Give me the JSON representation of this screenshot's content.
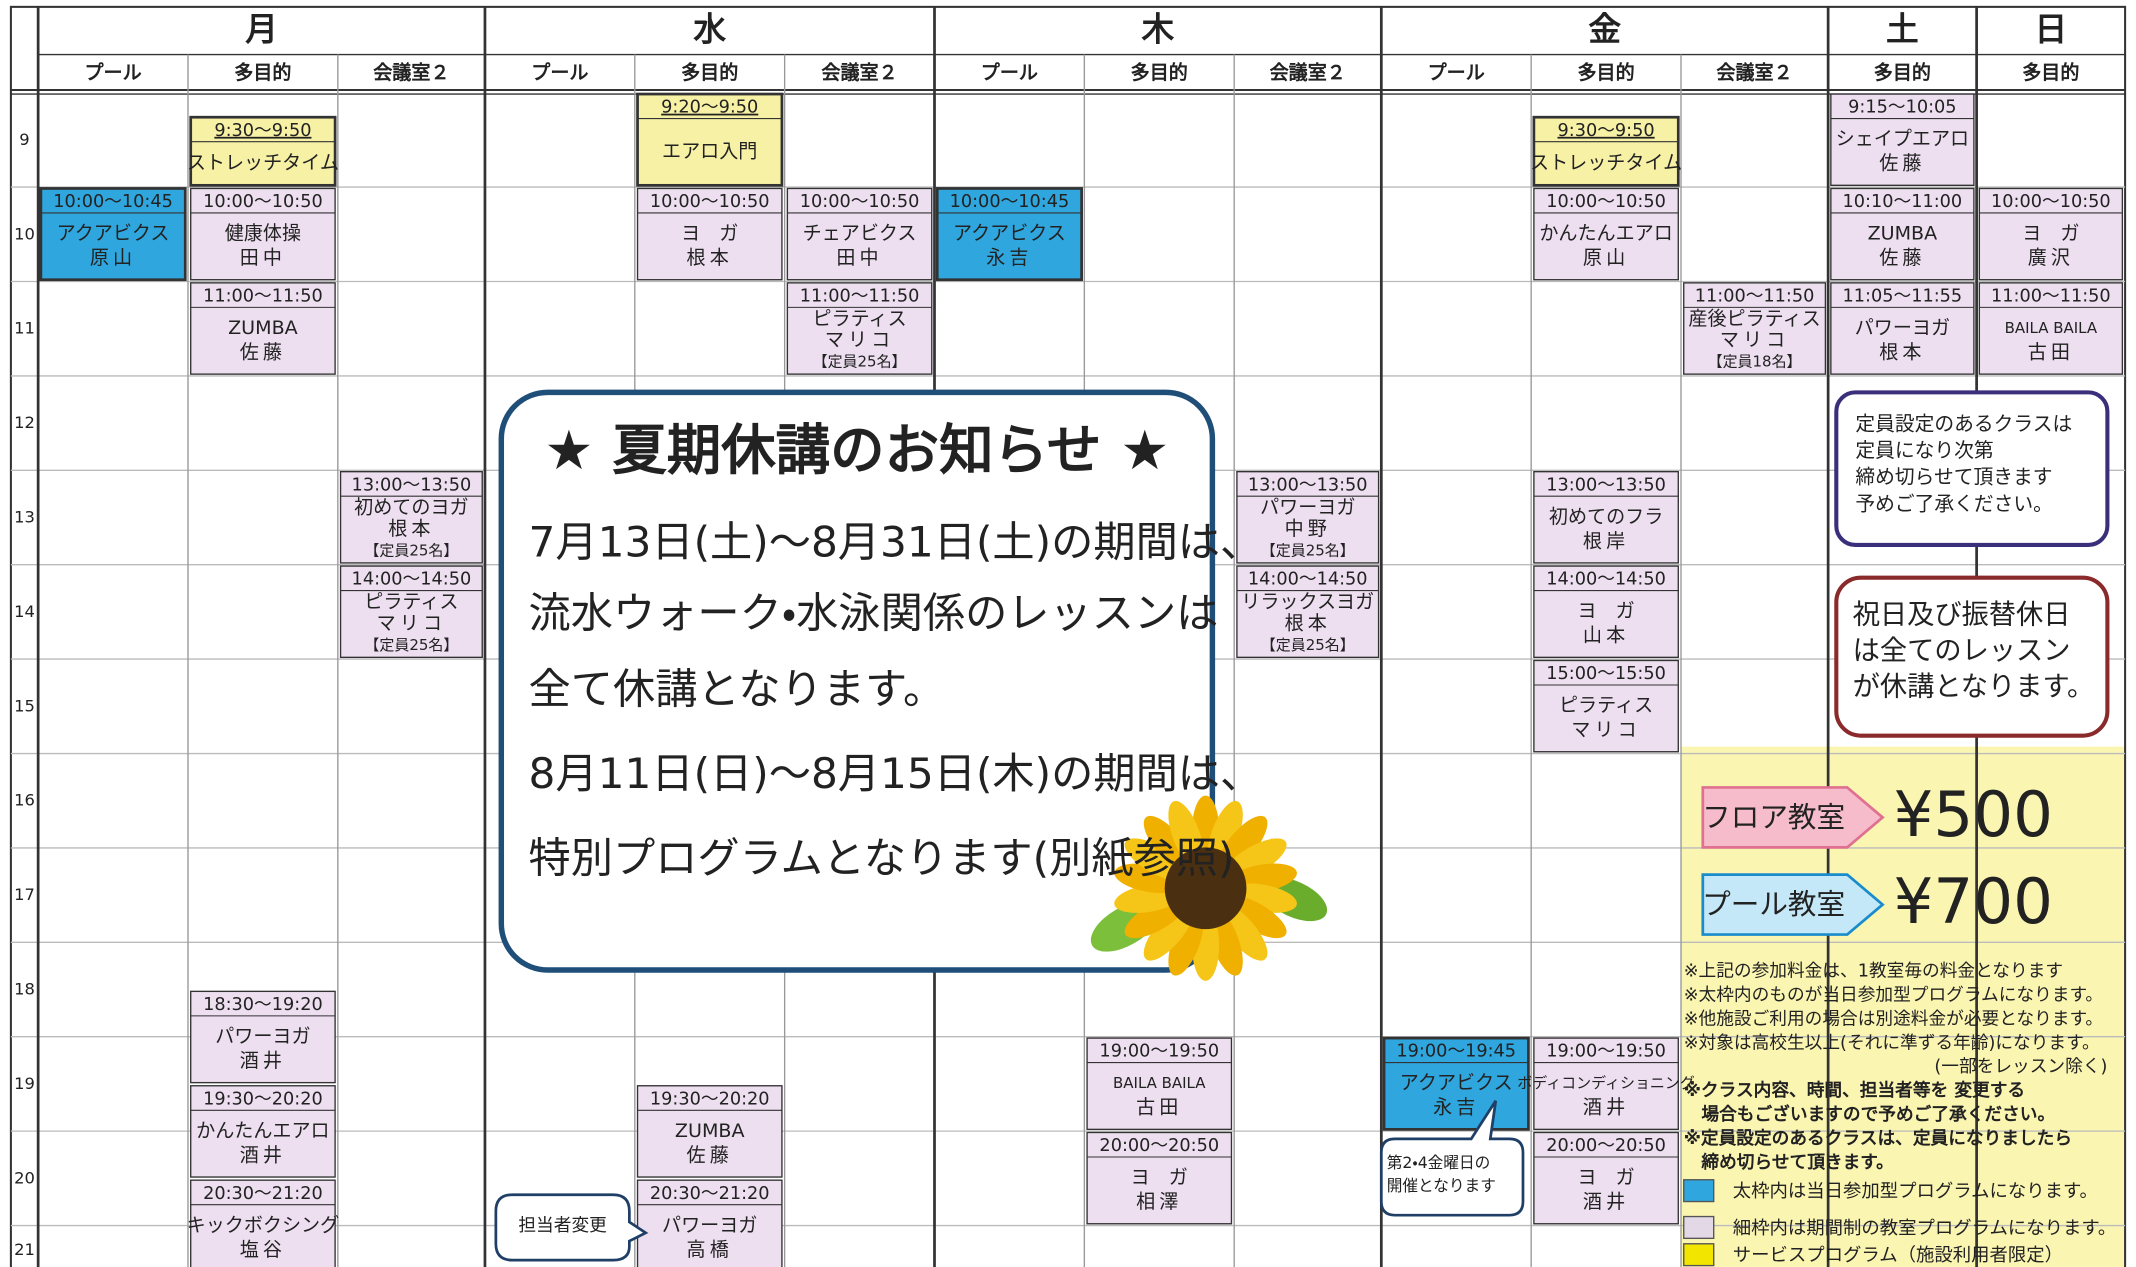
{
  "days": [
    {
      "name": "月",
      "color": "#222222",
      "rooms": [
        {
          "name": "プール",
          "classes": [
            {
              "time": "10:00～10:45",
              "name": "アクアビクス",
              "teacher": "原山",
              "color": "#2fa6dd"
            }
          ]
        },
        {
          "name": "多目的",
          "classes": [
            {
              "time": "9:30～9:50",
              "name": "ストレッチタイム",
              "color": "#f7f1a6"
            },
            {
              "time": "10:00～10:50",
              "name": "健康体操",
              "teacher": "田中",
              "color": "#eddff0"
            },
            {
              "time": "11:00～11:50",
              "name": "ZUMBA",
              "teacher": "佐藤",
              "color": "#eddff0"
            },
            {
              "time": "18:30～19:20",
              "name": "パワーヨガ",
              "teacher": "酒井",
              "color": "#eddff0"
            },
            {
              "time": "19:30～20:20",
              "name": "かんたんエアロ",
              "teacher": "酒井",
              "color": "#eddff0"
            },
            {
              "time": "20:30～21:20",
              "name": "キックボクシング",
              "teacher": "塩谷",
              "color": "#eddff0"
            }
          ]
        },
        {
          "name": "会議室２",
          "classes": [
            {
              "time": "13:00～13:50",
              "name": "初めてのヨガ",
              "teacher": "根本",
              "capacity": "【定員25名】",
              "color": "#eddff0"
            },
            {
              "time": "14:00～14:50",
              "name": "ピラティス",
              "teacher": "マリコ",
              "capacity": "【定員25名】",
              "color": "#eddff0"
            }
          ]
        }
      ]
    },
    {
      "name": "水",
      "color": "#222222",
      "rooms": [
        {
          "name": "プール",
          "classes": []
        },
        {
          "name": "多目的",
          "classes": [
            {
              "time": "9:20～9:50",
              "name": "エアロ入門",
              "color": "#f7f1a6"
            },
            {
              "time": "10:00～10:50",
              "name": "ヨ　ガ",
              "teacher": "根本",
              "color": "#eddff0"
            },
            {
              "time": "19:30～20:20",
              "name": "ZUMBA",
              "teacher": "佐藤",
              "color": "#eddff0"
            },
            {
              "time": "20:30～21:20",
              "name": "パワーヨガ",
              "teacher": "高橋",
              "color": "#eddff0"
            }
          ]
        },
        {
          "name": "会議室２",
          "classes": [
            {
              "time": "10:00～10:50",
              "name": "チェアビクス",
              "teacher": "田中",
              "color": "#eddff0"
            },
            {
              "time": "11:00～11:50",
              "name": "ピラティス",
              "teacher": "マリコ",
              "capacity": "【定員25名】",
              "color": "#eddff0"
            }
          ]
        }
      ]
    },
    {
      "name": "木",
      "color": "#222222",
      "rooms": [
        {
          "name": "プール",
          "classes": [
            {
              "time": "10:00～10:45",
              "name": "アクアビクス",
              "teacher": "永吉",
              "color": "#2fa6dd"
            }
          ]
        },
        {
          "name": "多目的",
          "classes": [
            {
              "time": "19:00～19:50",
              "name": "BAILA BAILA",
              "teacher": "古田",
              "color": "#eddff0"
            },
            {
              "time": "20:00～20:50",
              "name": "ヨ　ガ",
              "teacher": "相澤",
              "color": "#eddff0"
            }
          ]
        },
        {
          "name": "会議室２",
          "classes": [
            {
              "time": "13:00～13:50",
              "name": "パワーヨガ",
              "teacher": "中野",
              "capacity": "【定員25名】",
              "color": "#eddff0"
            },
            {
              "time": "14:00～14:50",
              "name": "リラックスヨガ",
              "teacher": "根本",
              "capacity": "【定員25名】",
              "color": "#eddff0"
            }
          ]
        }
      ]
    },
    {
      "name": "金",
      "color": "#222222",
      "rooms": [
        {
          "name": "プール",
          "classes": [
            {
              "time": "19:00～19:45",
              "name": "アクアビクス",
              "teacher": "永吉",
              "color": "#2fa6dd"
            }
          ]
        },
        {
          "name": "多目的",
          "classes": [
            {
              "time": "9:30～9:50",
              "name": "ストレッチタイム",
              "color": "#f7f1a6"
            },
            {
              "time": "10:00～10:50",
              "name": "かんたんエアロ",
              "teacher": "原山",
              "color": "#eddff0"
            },
            {
              "time": "13:00～13:50",
              "name": "初めてのフラ",
              "teacher": "根岸",
              "color": "#eddff0"
            },
            {
              "time": "14:00～14:50",
              "name": "ヨ　ガ",
              "teacher": "山本",
              "color": "#eddff0"
            },
            {
              "time": "15:00～15:50",
              "name": "ピラティス",
              "teacher": "マリコ",
              "color": "#eddff0"
            },
            {
              "time": "19:00～19:50",
              "name": "ボディコンディショニング",
              "teacher": "酒井",
              "color": "#eddff0"
            },
            {
              "time": "20:00～20:50",
              "name": "ヨ　ガ",
              "teacher": "酒井",
              "color": "#eddff0"
            }
          ]
        },
        {
          "name": "会議室２",
          "classes": [
            {
              "time": "11:00～11:50",
              "name": "産後ピラティス",
              "teacher": "マリコ",
              "capacity": "【定員18名】",
              "color": "#eddff0"
            }
          ]
        }
      ]
    },
    {
      "name": "土",
      "color": "#1a8fd6",
      "rooms": [
        {
          "name": "多目的",
          "classes": [
            {
              "time": "9:15～10:05",
              "name": "シェイプエアロ",
              "teacher": "佐藤",
              "color": "#eddff0"
            },
            {
              "time": "10:10～11:00",
              "name": "ZUMBA",
              "teacher": "佐藤",
              "color": "#eddff0"
            },
            {
              "time": "11:05～11:55",
              "name": "パワーヨガ",
              "teacher": "根本",
              "color": "#eddff0"
            }
          ]
        }
      ]
    },
    {
      "name": "日",
      "color": "#e0262e",
      "rooms": [
        {
          "name": "多目的",
          "classes": [
            {
              "time": "10:00～10:50",
              "name": "ヨ　ガ",
              "teacher": "廣沢",
              "color": "#eddff0"
            },
            {
              "time": "11:00～11:50",
              "name": "BAILA BAILA",
              "teacher": "古田",
              "color": "#eddff0"
            }
          ]
        }
      ]
    }
  ],
  "hours": [
    9,
    10,
    11,
    12,
    13,
    14,
    15,
    16,
    17,
    18,
    19,
    20,
    21
  ],
  "notice": {
    "title": "★ 夏期休講のお知らせ ★",
    "lines": [
      "7月13日(土)～8月31日(土)の期間は、",
      "流水ウォーク・水泳関係のレッスンは",
      "全て休講となります。",
      "8月11日(日)～8月15日(木)の期間は、",
      "特別プログラムとなります(別紙参照)"
    ]
  },
  "notes": [
    {
      "lines": [
        "定員設定のあるクラスは",
        "定員になり次第",
        "締め切らせて頂きます",
        "予めご了承ください。"
      ]
    },
    {
      "lines": [
        "祝日及び振替休日",
        "は全てのレッスン",
        "が休講となります。"
      ]
    }
  ],
  "prices": [
    {
      "label": "フロア教室",
      "price": "¥500"
    },
    {
      "label": "プール教室",
      "price": "¥700"
    }
  ],
  "remarks": [
    {
      "text": "※上記の参加料金は、1教室毎の料金となります",
      "color": "#222222"
    },
    {
      "text": "※太枠内のものが当日参加型プログラムになります。",
      "color": "#222222"
    },
    {
      "text": "※他施設ご利用の場合は別途料金が必要となります。",
      "color": "#222222"
    },
    {
      "text": "※対象は高校生以上(それに準ずる年齢)になります。",
      "color": "#222222"
    },
    {
      "text": "(一部をレッスン除く)",
      "color": "#222222"
    },
    {
      "text": "※クラス内容、時間、担当者等を 変更する",
      "color": "#e0262e"
    },
    {
      "text": "　場合もございますので予めご了承ください。",
      "color": "#e0262e"
    },
    {
      "text": "※定員設定のあるクラスは、定員になりましたら",
      "color": "#e0262e"
    },
    {
      "text": "　締め切らせて頂きます。",
      "color": "#e0262e"
    }
  ],
  "legend": [
    {
      "text": "太枠内は当日参加型プログラムになります。",
      "color": "#2fa6dd"
    },
    {
      "text": "細枠内は期間制の教室プログラムになります。",
      "color": "#e3d8e6"
    },
    {
      "text": "サービスプログラム（施設利用者限定）",
      "color": "#f2e600"
    }
  ],
  "callouts": [
    {
      "lines": [
        "担当者変更"
      ]
    },
    {
      "lines": [
        "第2・4金曜日の",
        "開催となります"
      ]
    }
  ]
}
